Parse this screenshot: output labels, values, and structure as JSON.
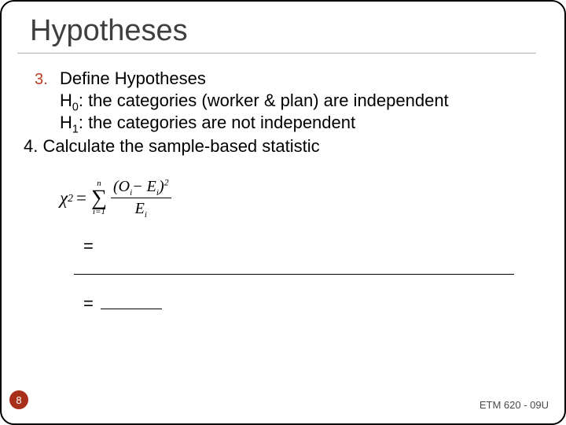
{
  "title": "Hypotheses",
  "list": {
    "num3": "3.",
    "head3": "Define Hypotheses",
    "h0_label": "H",
    "h0_sub": "0",
    "h0_text": ": the categories (worker & plan) are independent",
    "h1_label": "H",
    "h1_sub": "1",
    "h1_text": ": the categories are not independent",
    "item4": "4. Calculate the sample-based statistic"
  },
  "formula": {
    "chi": "χ",
    "sq": "2",
    "eq": "=",
    "sum_top": "n",
    "sum_sym": "∑",
    "sum_bot": "i=1",
    "num_open": "(",
    "num_o": "O",
    "num_sub": "i",
    "minus": "−",
    "num_e": "E",
    "num_close": ")",
    "num_sq": "2",
    "den_e": "E",
    "den_sub": "i"
  },
  "eqline": {
    "eq1": "=",
    "eq2": "= "
  },
  "page": "8",
  "footer": "ETM 620 - 09U",
  "colors": {
    "accent": "#b83e23",
    "badge": "#a82f1a",
    "title": "#3f3f3f"
  }
}
